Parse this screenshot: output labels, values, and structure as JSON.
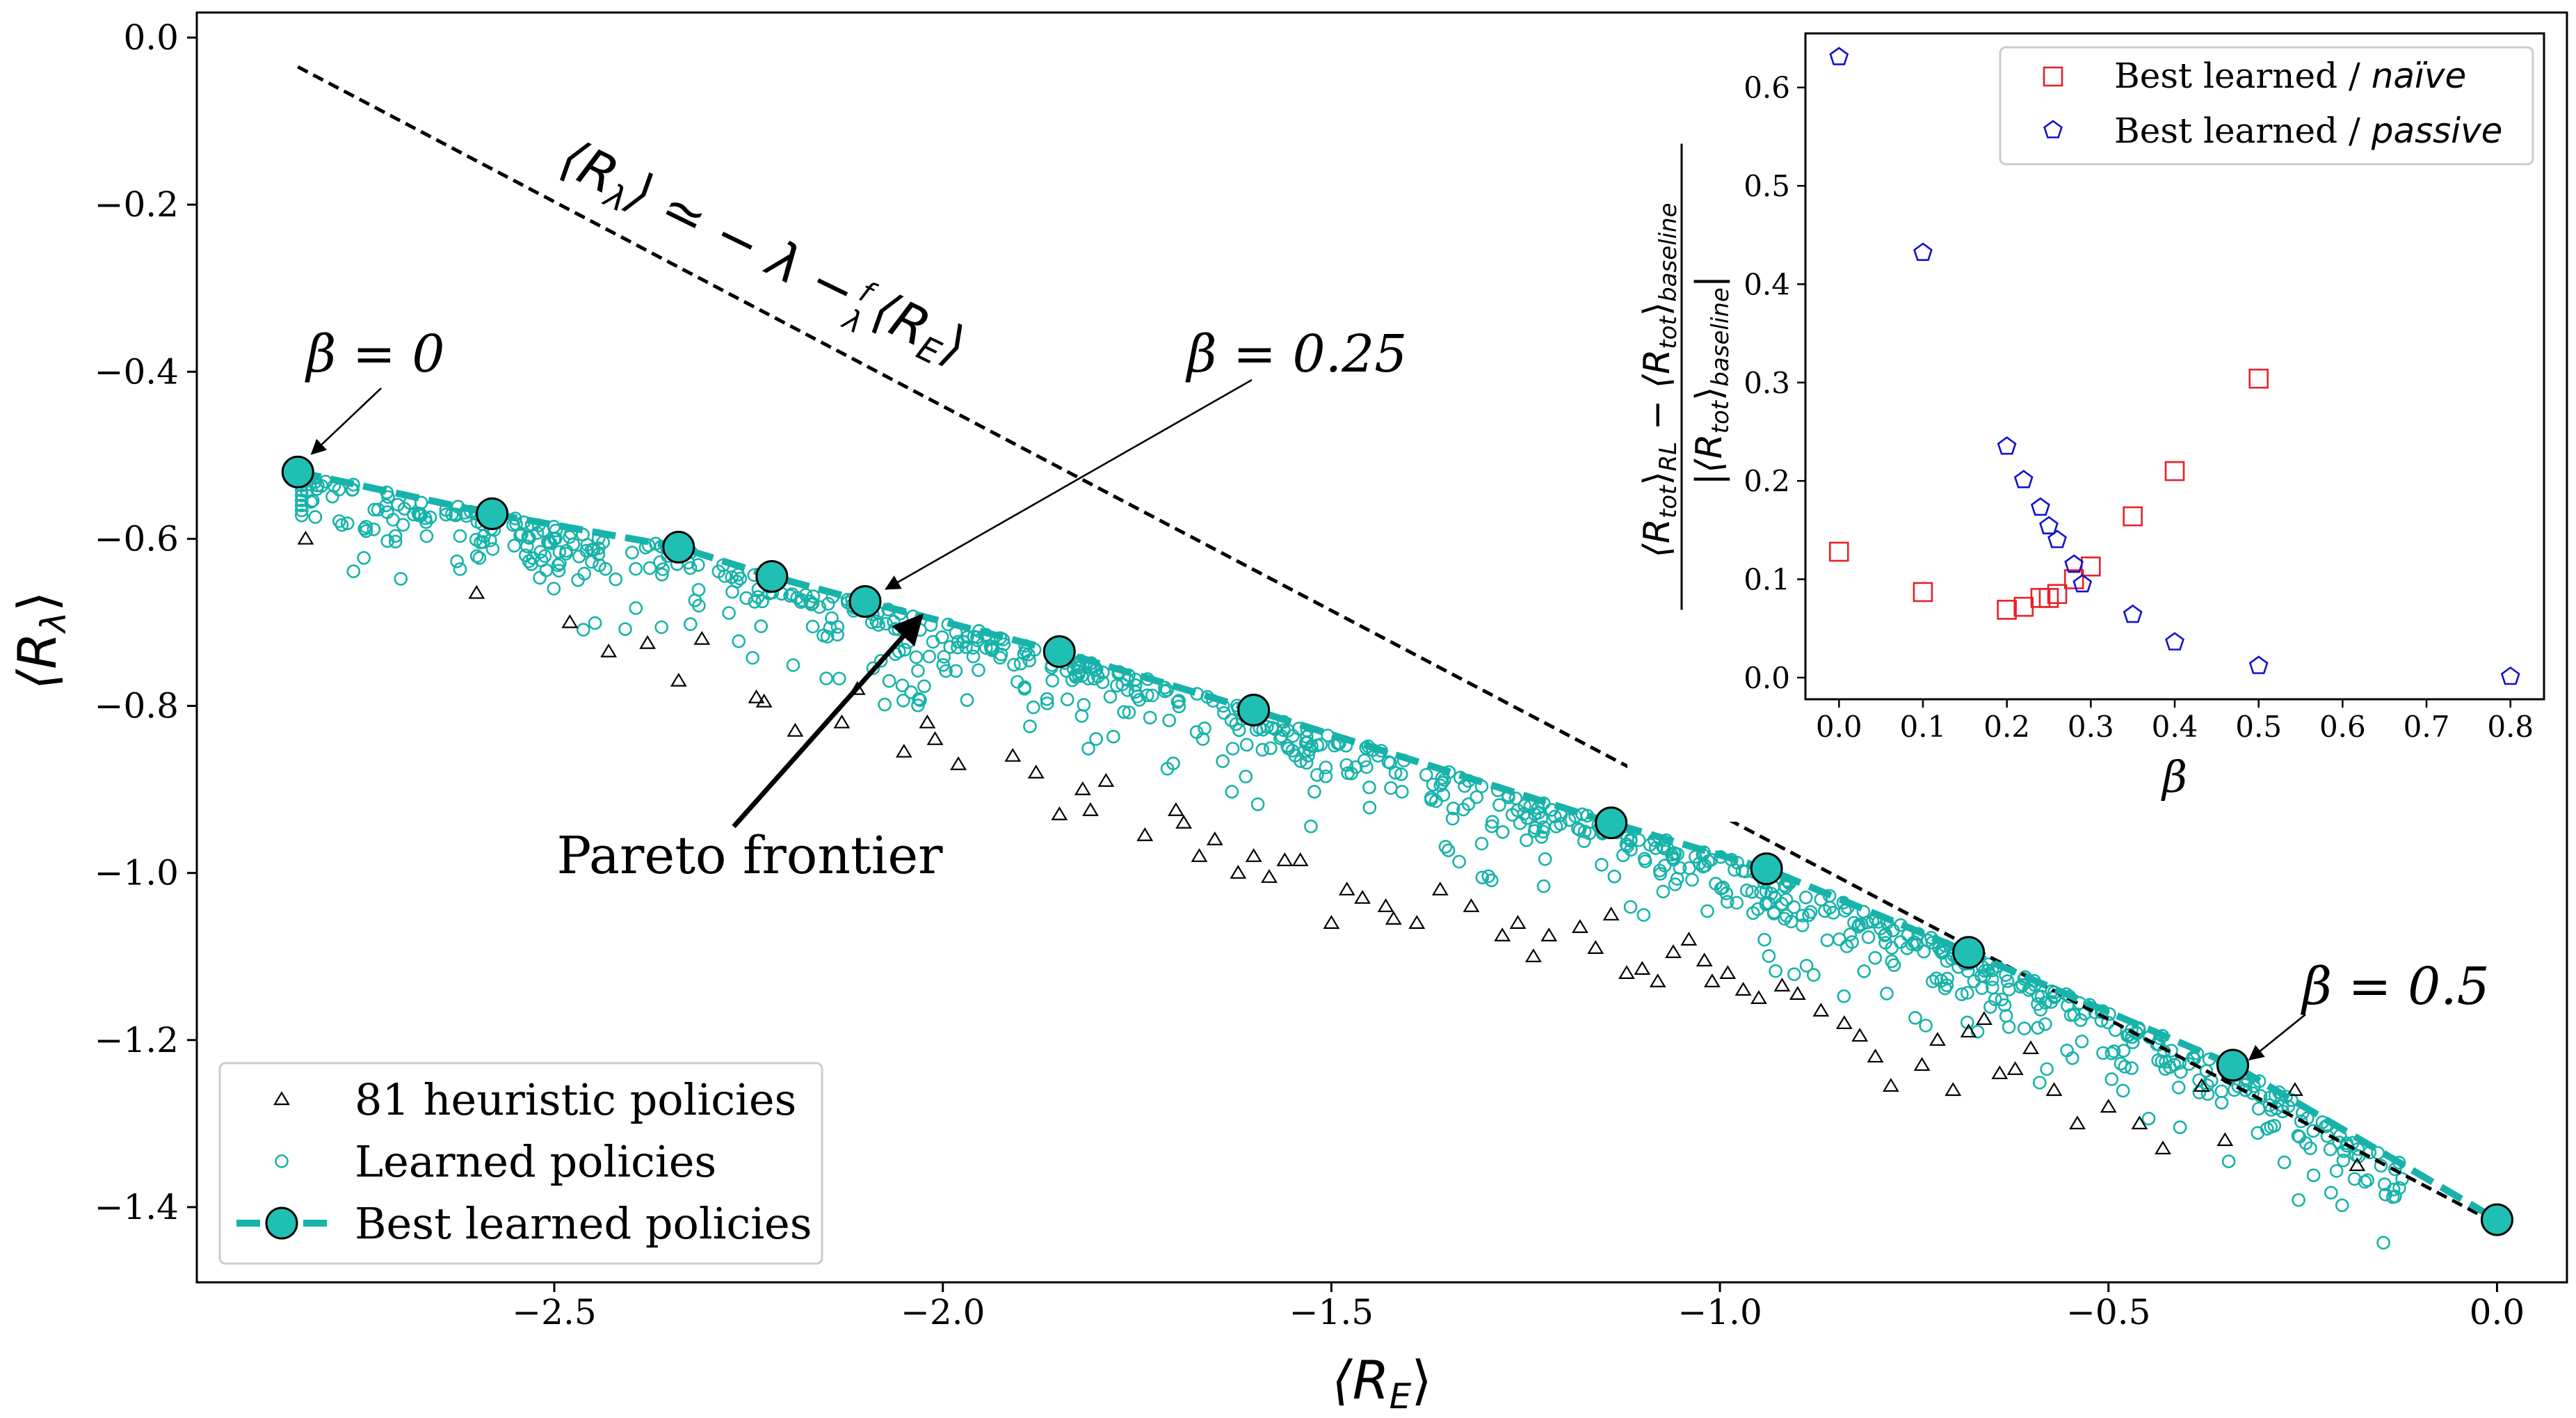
{
  "chart_data": [
    {
      "id": "main",
      "type": "scatter",
      "xlabel": "⟨R",
      "xlabel_sub": "E",
      "xlabel_close": "⟩",
      "ylabel": "⟨R",
      "ylabel_sub": "λ",
      "ylabel_close": "⟩",
      "xlim": [
        -2.96,
        0.09
      ],
      "ylim": [
        -1.49,
        0.03
      ],
      "xticks": [
        -2.5,
        -2.0,
        -1.5,
        -1.0,
        -0.5,
        0.0
      ],
      "xtick_labels": [
        "−2.5",
        "−2.0",
        "−1.5",
        "−1.0",
        "−0.5",
        "0.0"
      ],
      "yticks": [
        0.0,
        -0.2,
        -0.4,
        -0.6,
        -0.8,
        -1.0,
        -1.2,
        -1.4
      ],
      "ytick_labels": [
        "0.0",
        "−0.2",
        "−0.4",
        "−0.6",
        "−0.8",
        "−1.0",
        "−1.2",
        "−1.4"
      ],
      "colors": {
        "teal": "#17b3aa",
        "teal_fill": "#1fbfb4",
        "black": "#000000"
      },
      "legend": [
        {
          "label": "81 heuristic policies",
          "marker": "triangle"
        },
        {
          "label": "Learned policies",
          "marker": "circle"
        },
        {
          "label": "Best learned policies",
          "marker": "filled-circle-dashed"
        }
      ],
      "best_learned": {
        "name": "Best learned policies",
        "x": [
          -2.83,
          -2.58,
          -2.34,
          -2.22,
          -2.1,
          -1.85,
          -1.6,
          -1.14,
          -0.94,
          -0.68,
          -0.34,
          0.0
        ],
        "y": [
          -0.52,
          -0.57,
          -0.61,
          -0.645,
          -0.675,
          -0.735,
          -0.805,
          -0.94,
          -0.995,
          -1.095,
          -1.23,
          -1.415
        ]
      },
      "heuristic": {
        "name": "81 heuristic policies",
        "x": [
          -2.82,
          -2.6,
          -2.48,
          -2.43,
          -2.38,
          -2.34,
          -2.31,
          -2.24,
          -2.23,
          -2.19,
          -2.13,
          -2.11,
          -2.05,
          -2.02,
          -2.01,
          -1.98,
          -1.91,
          -1.88,
          -1.85,
          -1.82,
          -1.81,
          -1.79,
          -1.74,
          -1.7,
          -1.69,
          -1.67,
          -1.65,
          -1.62,
          -1.6,
          -1.58,
          -1.56,
          -1.54,
          -1.5,
          -1.48,
          -1.46,
          -1.43,
          -1.42,
          -1.39,
          -1.36,
          -1.32,
          -1.28,
          -1.26,
          -1.24,
          -1.22,
          -1.18,
          -1.16,
          -1.14,
          -1.12,
          -1.1,
          -1.08,
          -1.06,
          -1.04,
          -1.02,
          -1.01,
          -0.99,
          -0.97,
          -0.95,
          -0.92,
          -0.9,
          -0.87,
          -0.84,
          -0.82,
          -0.8,
          -0.78,
          -0.74,
          -0.72,
          -0.7,
          -0.68,
          -0.66,
          -0.64,
          -0.62,
          -0.6,
          -0.57,
          -0.54,
          -0.5,
          -0.46,
          -0.43,
          -0.38,
          -0.35,
          -0.26,
          -0.18
        ],
        "y": [
          -0.6,
          -0.665,
          -0.7,
          -0.735,
          -0.725,
          -0.77,
          -0.72,
          -0.79,
          -0.795,
          -0.83,
          -0.82,
          -0.78,
          -0.855,
          -0.82,
          -0.84,
          -0.87,
          -0.86,
          -0.88,
          -0.93,
          -0.9,
          -0.925,
          -0.89,
          -0.955,
          -0.925,
          -0.94,
          -0.98,
          -0.96,
          -1.0,
          -0.98,
          -1.005,
          -0.985,
          -0.985,
          -1.06,
          -1.02,
          -1.03,
          -1.04,
          -1.055,
          -1.06,
          -1.02,
          -1.04,
          -1.075,
          -1.06,
          -1.1,
          -1.075,
          -1.065,
          -1.09,
          -1.05,
          -1.12,
          -1.115,
          -1.13,
          -1.095,
          -1.08,
          -1.105,
          -1.13,
          -1.12,
          -1.14,
          -1.15,
          -1.135,
          -1.145,
          -1.165,
          -1.18,
          -1.195,
          -1.22,
          -1.255,
          -1.23,
          -1.2,
          -1.26,
          -1.19,
          -1.175,
          -1.24,
          -1.235,
          -1.21,
          -1.26,
          -1.3,
          -1.28,
          -1.3,
          -1.33,
          -1.255,
          -1.32,
          -1.26,
          -1.35
        ]
      },
      "annotations": [
        {
          "id": "beta0",
          "text": "β = 0"
        },
        {
          "id": "beta025",
          "text": "β = 0.25"
        },
        {
          "id": "beta05",
          "text": "β = 0.5"
        },
        {
          "id": "pareto",
          "text": "Pareto frontier"
        },
        {
          "id": "bound",
          "text": "⟨R"
        }
      ],
      "bound_line": {
        "label_main": "⟨R",
        "label_sub": "λ",
        "label_rest": "⟩ ≃ − λ −",
        "label_frac_num": "f",
        "label_frac_den": "λ",
        "label_tail": "⟨R",
        "label_tail_sub": "E",
        "label_tail_close": "⟩",
        "x": [
          -2.83,
          0.0
        ],
        "y": [
          -0.035,
          -1.42
        ]
      }
    },
    {
      "id": "inset",
      "type": "scatter",
      "xlabel": "β",
      "ylabel_num": "⟨R",
      "ylabel_num_sub1": "tot",
      "ylabel_num_mid": "⟩",
      "ylabel_num_sub2": "RL",
      "ylabel_num_minus": " − ⟨R",
      "ylabel_num_sub3": "tot",
      "ylabel_num_close": "⟩",
      "ylabel_num_sub4": "baseline",
      "ylabel_den": "|⟨R",
      "ylabel_den_sub1": "tot",
      "ylabel_den_close": "⟩",
      "ylabel_den_sub2": "baseline",
      "ylabel_den_end": "|",
      "xlim": [
        -0.04,
        0.84
      ],
      "ylim": [
        -0.022,
        0.655
      ],
      "xticks": [
        0.0,
        0.1,
        0.2,
        0.3,
        0.4,
        0.5,
        0.6,
        0.7,
        0.8
      ],
      "xtick_labels": [
        "0.0",
        "0.1",
        "0.2",
        "0.3",
        "0.4",
        "0.5",
        "0.6",
        "0.7",
        "0.8"
      ],
      "yticks": [
        0.0,
        0.1,
        0.2,
        0.3,
        0.4,
        0.5,
        0.6
      ],
      "ytick_labels": [
        "0.0",
        "0.1",
        "0.2",
        "0.3",
        "0.4",
        "0.5",
        "0.6"
      ],
      "colors": {
        "naive": "#e8202a",
        "passive": "#1010d0"
      },
      "legend": [
        {
          "label": "Best learned / ",
          "label_italic": "naïve",
          "marker": "square"
        },
        {
          "label": "Best learned / ",
          "label_italic": "passive",
          "marker": "pentagon"
        }
      ],
      "series": [
        {
          "name": "Best learned / naïve",
          "marker": "square",
          "x": [
            0.0,
            0.1,
            0.2,
            0.22,
            0.24,
            0.25,
            0.26,
            0.28,
            0.3,
            0.35,
            0.4,
            0.5
          ],
          "y": [
            0.128,
            0.087,
            0.069,
            0.072,
            0.081,
            0.081,
            0.085,
            0.1,
            0.113,
            0.164,
            0.21,
            0.304
          ]
        },
        {
          "name": "Best learned / passive",
          "marker": "pentagon",
          "x": [
            0.0,
            0.1,
            0.2,
            0.22,
            0.24,
            0.25,
            0.26,
            0.28,
            0.29,
            0.35,
            0.4,
            0.5,
            0.8
          ],
          "y": [
            0.631,
            0.432,
            0.235,
            0.201,
            0.173,
            0.154,
            0.14,
            0.115,
            0.095,
            0.064,
            0.036,
            0.012,
            0.001
          ]
        }
      ]
    }
  ]
}
